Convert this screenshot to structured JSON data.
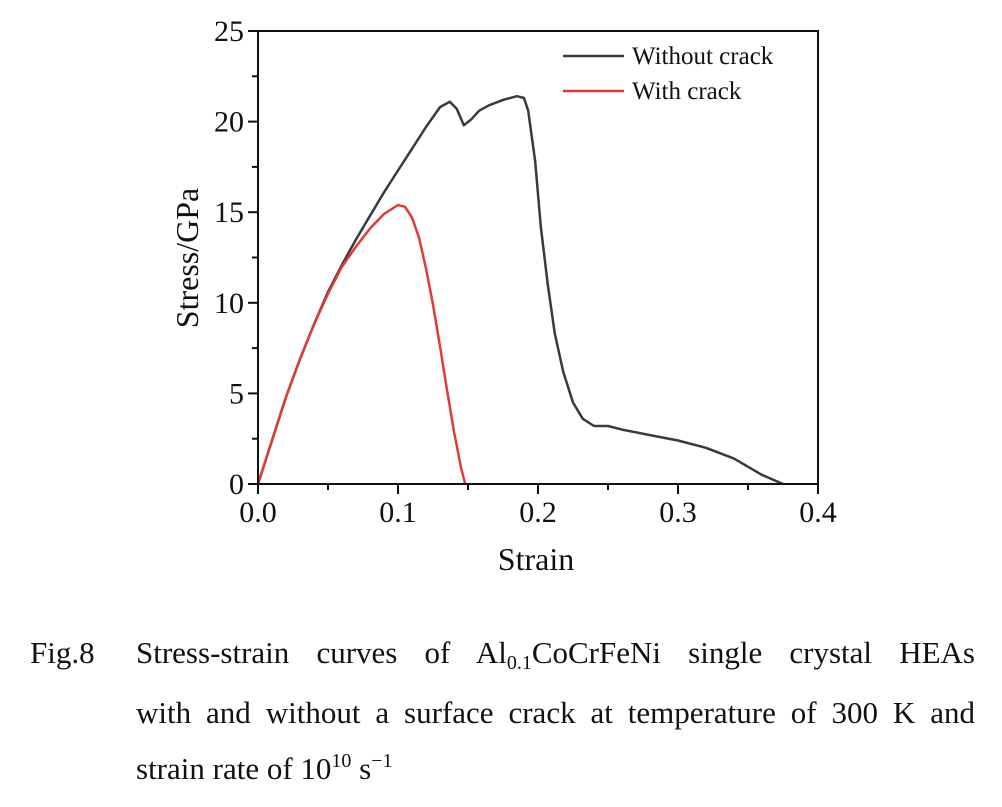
{
  "chart_data": {
    "type": "line",
    "xlabel": "Strain",
    "ylabel": "Stress/GPa",
    "xlim": [
      0.0,
      0.4
    ],
    "ylim": [
      0,
      25
    ],
    "xticks": [
      "0.0",
      "0.1",
      "0.2",
      "0.3",
      "0.4"
    ],
    "yticks": [
      "0",
      "5",
      "10",
      "15",
      "20",
      "25"
    ],
    "legend_position": "top-right",
    "series": [
      {
        "name": "Without crack",
        "color": "#3a3a3a",
        "x": [
          0.0,
          0.01,
          0.02,
          0.03,
          0.04,
          0.05,
          0.06,
          0.07,
          0.08,
          0.09,
          0.1,
          0.11,
          0.12,
          0.13,
          0.137,
          0.142,
          0.147,
          0.152,
          0.158,
          0.165,
          0.175,
          0.185,
          0.19,
          0.193,
          0.198,
          0.202,
          0.207,
          0.212,
          0.218,
          0.225,
          0.232,
          0.24,
          0.25,
          0.26,
          0.28,
          0.3,
          0.32,
          0.34,
          0.36,
          0.375
        ],
        "y": [
          0.0,
          2.4,
          4.8,
          6.9,
          8.8,
          10.6,
          12.1,
          13.5,
          14.8,
          16.1,
          17.3,
          18.5,
          19.7,
          20.8,
          21.1,
          20.7,
          19.8,
          20.1,
          20.6,
          20.9,
          21.2,
          21.4,
          21.3,
          20.6,
          17.8,
          14.2,
          11.0,
          8.3,
          6.2,
          4.5,
          3.6,
          3.2,
          3.2,
          3.0,
          2.7,
          2.4,
          2.0,
          1.4,
          0.5,
          0.0
        ]
      },
      {
        "name": "With crack",
        "color": "#e03a3a",
        "x": [
          0.0,
          0.01,
          0.02,
          0.03,
          0.04,
          0.05,
          0.06,
          0.07,
          0.08,
          0.09,
          0.1,
          0.105,
          0.11,
          0.115,
          0.12,
          0.125,
          0.13,
          0.135,
          0.14,
          0.145,
          0.148
        ],
        "y": [
          0.0,
          2.4,
          4.8,
          6.9,
          8.8,
          10.5,
          12.0,
          13.1,
          14.1,
          14.9,
          15.4,
          15.3,
          14.7,
          13.6,
          11.9,
          9.9,
          7.6,
          5.2,
          2.9,
          0.9,
          0.0
        ]
      }
    ]
  },
  "caption": {
    "label": "Fig.8",
    "line1_pre": "Stress-strain curves of Al",
    "line1_sub": "0.1",
    "line1_post": "CoCrFeNi single crystal HEAs",
    "line2": "with and without a surface crack at temperature of 300 K and",
    "line3_pre": "strain rate of 10",
    "line3_sup": "10",
    "line3_mid": " s",
    "line3_sup2": "−1"
  }
}
